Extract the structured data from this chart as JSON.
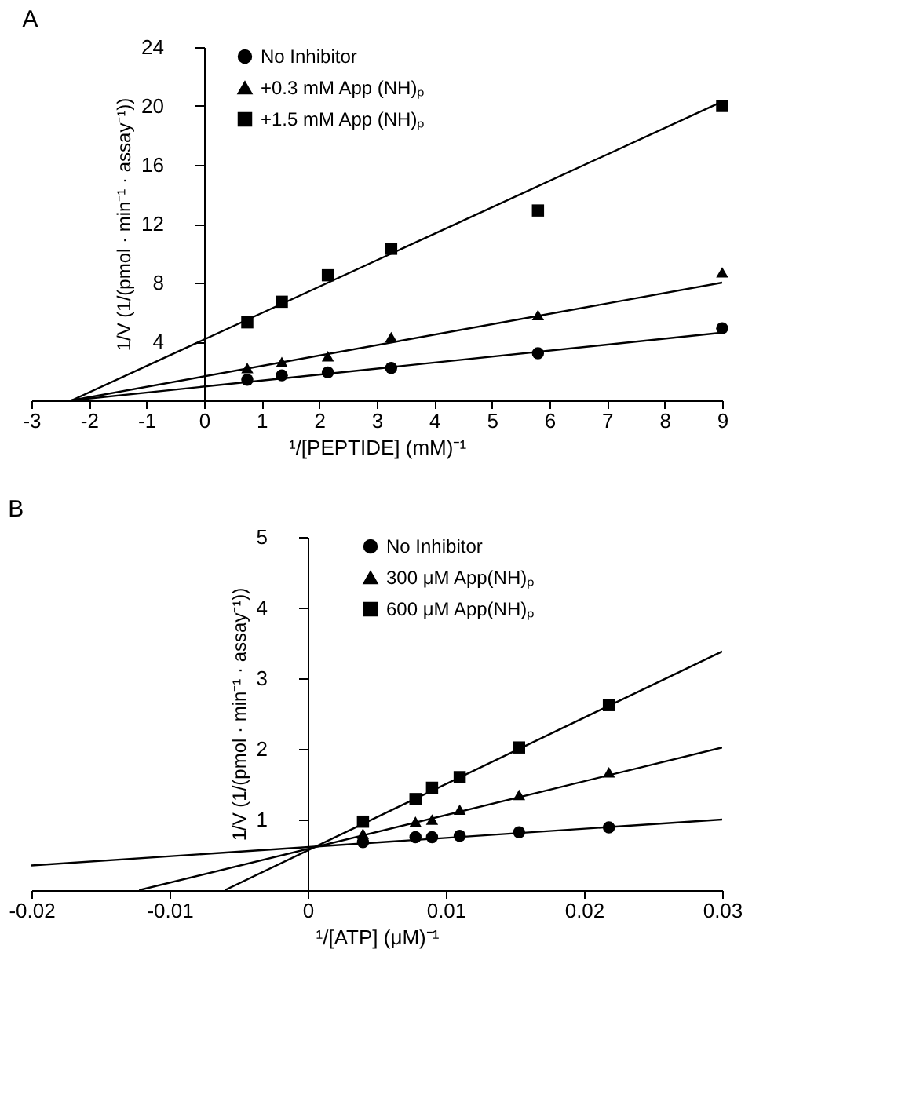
{
  "chart_data": [
    {
      "type": "scatter",
      "title": "A",
      "xlabel": "¹/[PEPTIDE] (mM)⁻¹",
      "ylabel": "1/V (1/(pmol · min⁻¹ · assay⁻¹))",
      "xlim": [
        -3,
        9
      ],
      "xticks": [
        -3,
        -2,
        -1,
        0,
        1,
        2,
        3,
        4,
        5,
        6,
        7,
        8,
        9
      ],
      "ylim": [
        0,
        24
      ],
      "yticks": [
        4,
        8,
        12,
        16,
        20,
        24
      ],
      "grid": false,
      "legend": "top left",
      "series": [
        {
          "name": "No Inhibitor",
          "type": "scatter",
          "marker": "circle",
          "color": "#000000",
          "x": [
            0.75,
            1.35,
            2.15,
            3.25,
            5.8,
            9
          ],
          "values": [
            1.4,
            1.7,
            1.9,
            2.2,
            3.2,
            4.9
          ]
        },
        {
          "name": "+0.3 mM App (NH)ₚ",
          "type": "scatter",
          "marker": "triangle",
          "color": "#000000",
          "x": [
            0.75,
            1.35,
            2.15,
            3.25,
            5.8,
            9
          ],
          "values": [
            2.2,
            2.6,
            3.0,
            4.3,
            5.8,
            8.7
          ]
        },
        {
          "name": "+1.5 mM App (NH)ₚ",
          "type": "scatter",
          "marker": "square",
          "color": "#000000",
          "x": [
            0.75,
            1.35,
            2.15,
            3.25,
            5.8,
            9
          ],
          "values": [
            5.3,
            6.7,
            8.5,
            10.3,
            12.9,
            20.0
          ]
        },
        {
          "type": "line",
          "marker": "none",
          "color": "#000000",
          "x": [
            -2.3,
            9
          ],
          "values": [
            0,
            4.6
          ]
        },
        {
          "type": "line",
          "marker": "none",
          "color": "#000000",
          "x": [
            -2.3,
            9
          ],
          "values": [
            0,
            8.0
          ]
        },
        {
          "type": "line",
          "marker": "none",
          "color": "#000000",
          "x": [
            -2.3,
            9
          ],
          "values": [
            0,
            20.3
          ]
        }
      ]
    },
    {
      "type": "scatter",
      "title": "B",
      "xlabel": "¹/[ATP] (μM)⁻¹",
      "ylabel": "1/V (1/(pmol · min⁻¹ · assay⁻¹))",
      "xlim": [
        -0.02,
        0.03
      ],
      "xticks": [
        -0.02,
        -0.01,
        0,
        0.01,
        0.02,
        0.03
      ],
      "ylim": [
        0,
        5
      ],
      "yticks": [
        1,
        2,
        3,
        4,
        5
      ],
      "grid": false,
      "legend": "top",
      "series": [
        {
          "name": "No Inhibitor",
          "type": "scatter",
          "marker": "circle",
          "color": "#000000",
          "x": [
            0.004,
            0.0078,
            0.009,
            0.011,
            0.0153,
            0.0218
          ],
          "values": [
            0.68,
            0.75,
            0.75,
            0.77,
            0.82,
            0.89
          ]
        },
        {
          "name": "300 μM App(NH)ₚ",
          "type": "scatter",
          "marker": "triangle",
          "color": "#000000",
          "x": [
            0.004,
            0.0078,
            0.009,
            0.011,
            0.0153,
            0.0218
          ],
          "values": [
            0.8,
            0.97,
            1.0,
            1.14,
            1.35,
            1.67
          ]
        },
        {
          "name": "600 μM App(NH)ₚ",
          "type": "scatter",
          "marker": "square",
          "color": "#000000",
          "x": [
            0.004,
            0.0078,
            0.009,
            0.011,
            0.0153,
            0.0218
          ],
          "values": [
            0.97,
            1.29,
            1.45,
            1.6,
            2.02,
            2.62
          ]
        },
        {
          "type": "line",
          "marker": "none",
          "color": "#000000",
          "x": [
            -0.02,
            0.03
          ],
          "values": [
            0.35,
            1.0
          ]
        },
        {
          "type": "line",
          "marker": "none",
          "color": "#000000",
          "x": [
            -0.0122,
            0.03
          ],
          "values": [
            0,
            2.02
          ]
        },
        {
          "type": "line",
          "marker": "none",
          "color": "#000000",
          "x": [
            -0.006,
            0.03
          ],
          "values": [
            0,
            3.38
          ]
        }
      ]
    }
  ]
}
